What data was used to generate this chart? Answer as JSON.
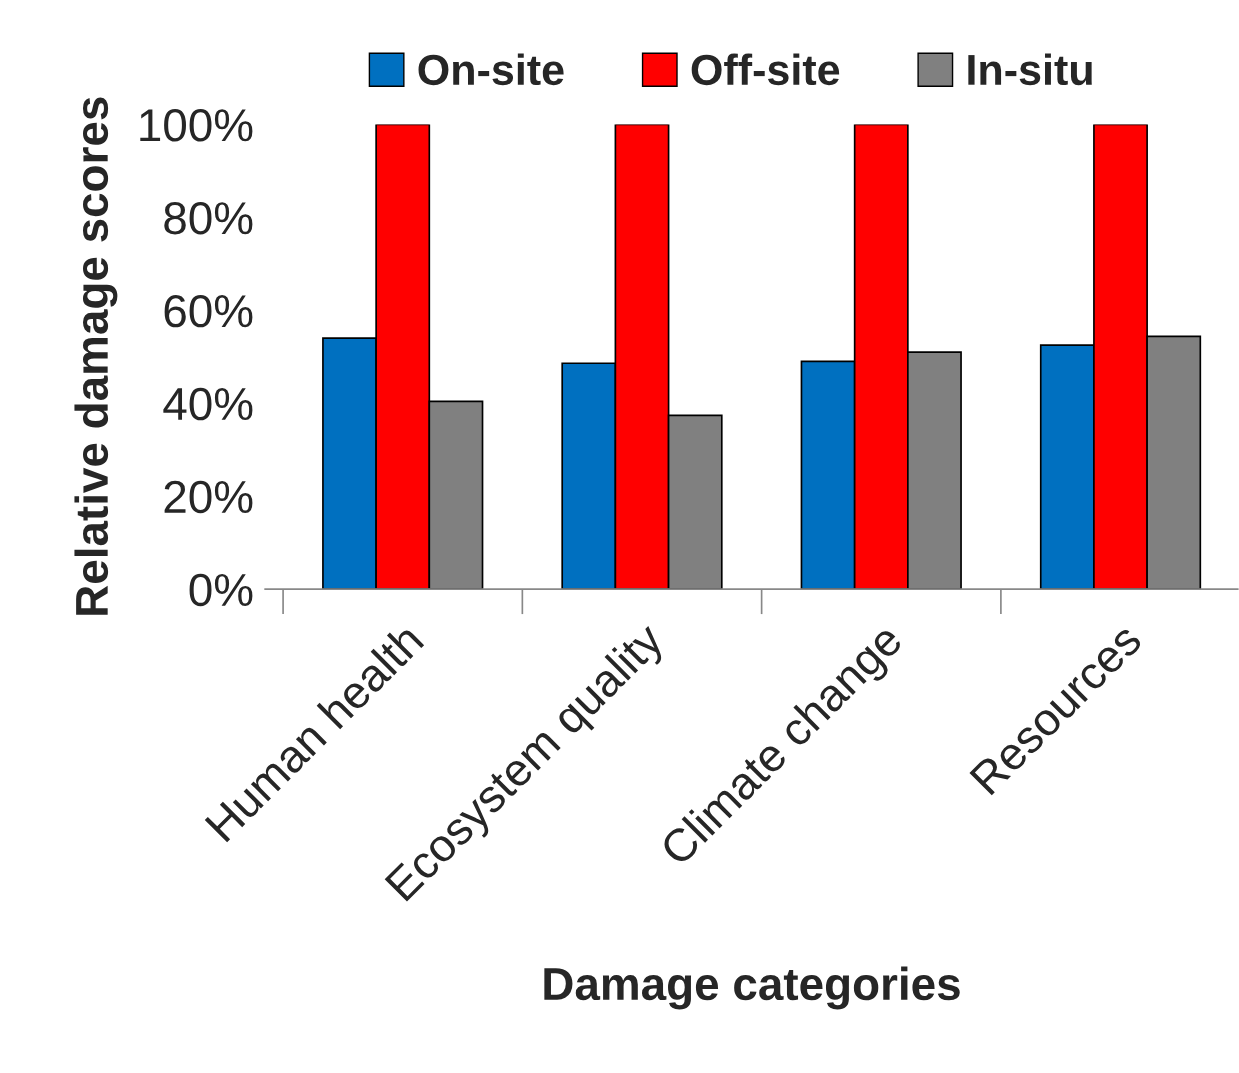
{
  "chart_data": {
    "type": "bar",
    "xlabel": "Damage categories",
    "ylabel": "Relative damage scores",
    "categories": [
      "Human health",
      "Ecosystem quality",
      "Climate change",
      "Resources"
    ],
    "series": [
      {
        "name": "On-site",
        "color": "#0070c0",
        "values": [
          54.0,
          48.6,
          49.0,
          52.5
        ]
      },
      {
        "name": "Off-site",
        "color": "#ff0000",
        "values": [
          100,
          100,
          100,
          100
        ]
      },
      {
        "name": "In-situ",
        "color": "#808080",
        "values": [
          40.4,
          37.4,
          51.0,
          54.4
        ]
      }
    ],
    "ylim": [
      0,
      100
    ],
    "yticks": [
      {
        "value": 0,
        "label": "0%"
      },
      {
        "value": 20,
        "label": "20%"
      },
      {
        "value": 40,
        "label": "40%"
      },
      {
        "value": 60,
        "label": "60%"
      },
      {
        "value": 80,
        "label": "80%"
      },
      {
        "value": 100,
        "label": "100%"
      }
    ],
    "legend": "top",
    "grid": false
  }
}
